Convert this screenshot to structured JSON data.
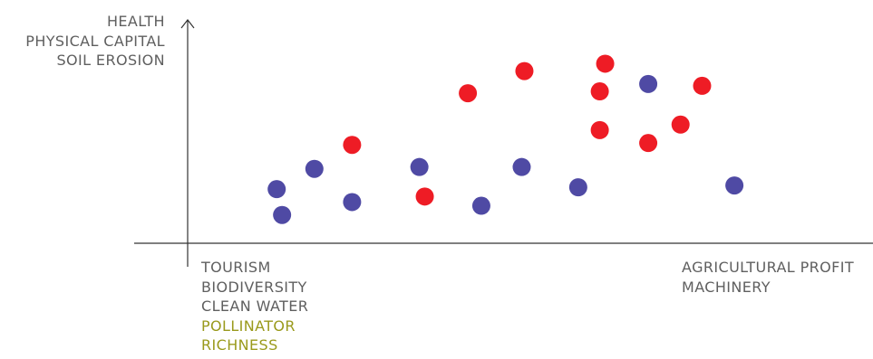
{
  "chart_data": {
    "type": "scatter",
    "title": "",
    "ylabel_lines": [
      {
        "text": "HEALTH",
        "color": "#5f5f5f"
      },
      {
        "text": "PHYSICAL CAPITAL",
        "color": "#5f5f5f"
      },
      {
        "text": "SOIL EROSION",
        "color": "#5f5f5f"
      }
    ],
    "xlabel_left_lines": [
      {
        "text": "TOURISM",
        "color": "#5f5f5f"
      },
      {
        "text": "BIODIVERSITY",
        "color": "#5f5f5f"
      },
      {
        "text": "CLEAN WATER",
        "color": "#5f5f5f"
      },
      {
        "text": "POLLINATOR",
        "color": "#9a9a1c"
      },
      {
        "text": "RICHNESS",
        "color": "#9a9a1c"
      }
    ],
    "xlabel_right_lines": [
      {
        "text": "AGRICULTURAL PROFIT",
        "color": "#5f5f5f"
      },
      {
        "text": "MACHINERY",
        "color": "#5f5f5f"
      }
    ],
    "xlim": [
      0,
      100
    ],
    "ylim": [
      0,
      100
    ],
    "grid": false,
    "axis_color": "#333333",
    "series": [
      {
        "color": "#ee1c25",
        "points": [
          {
            "x": 27,
            "y": 45
          },
          {
            "x": 40.5,
            "y": 17
          },
          {
            "x": 48.5,
            "y": 73
          },
          {
            "x": 59,
            "y": 85
          },
          {
            "x": 74,
            "y": 89
          },
          {
            "x": 73,
            "y": 74
          },
          {
            "x": 73,
            "y": 53
          },
          {
            "x": 82,
            "y": 46
          },
          {
            "x": 88,
            "y": 56
          },
          {
            "x": 92,
            "y": 77
          }
        ]
      },
      {
        "color": "#4f4aa4",
        "points": [
          {
            "x": 13,
            "y": 21
          },
          {
            "x": 14,
            "y": 7
          },
          {
            "x": 20,
            "y": 32
          },
          {
            "x": 27,
            "y": 14
          },
          {
            "x": 39.5,
            "y": 33
          },
          {
            "x": 51,
            "y": 12
          },
          {
            "x": 58.5,
            "y": 33
          },
          {
            "x": 69,
            "y": 22
          },
          {
            "x": 82,
            "y": 78
          },
          {
            "x": 98,
            "y": 23
          }
        ]
      }
    ]
  }
}
